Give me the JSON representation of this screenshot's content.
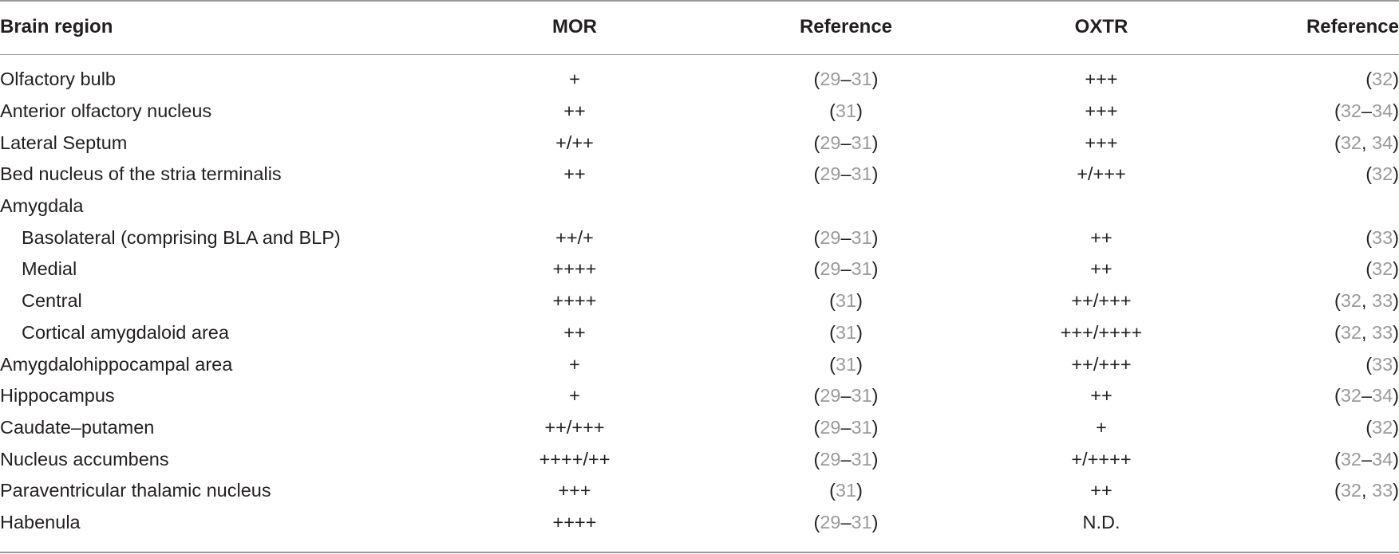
{
  "table": {
    "headers": [
      "Brain region",
      "MOR",
      "Reference",
      "OXTR",
      "Reference"
    ],
    "rows": [
      {
        "region": "Olfactory bulb",
        "indent": false,
        "mor": "+",
        "mor_ref": "(29–31)",
        "oxtr": "+++",
        "oxtr_ref": "(32)"
      },
      {
        "region": "Anterior olfactory nucleus",
        "indent": false,
        "mor": "++",
        "mor_ref": "(31)",
        "oxtr": "+++",
        "oxtr_ref": "(32–34)"
      },
      {
        "region": "Lateral Septum",
        "indent": false,
        "mor": "+/++",
        "mor_ref": "(29–31)",
        "oxtr": "+++",
        "oxtr_ref": "(32, 34)"
      },
      {
        "region": "Bed nucleus of the stria terminalis",
        "indent": false,
        "mor": "++",
        "mor_ref": "(29–31)",
        "oxtr": "+/+++",
        "oxtr_ref": "(32)"
      },
      {
        "region": "Amygdala",
        "indent": false,
        "mor": "",
        "mor_ref": "",
        "oxtr": "",
        "oxtr_ref": ""
      },
      {
        "region": "Basolateral (comprising BLA and BLP)",
        "indent": true,
        "mor": "++/+",
        "mor_ref": "(29–31)",
        "oxtr": "++",
        "oxtr_ref": "(33)"
      },
      {
        "region": "Medial",
        "indent": true,
        "mor": "++++",
        "mor_ref": "(29–31)",
        "oxtr": "++",
        "oxtr_ref": "(32)"
      },
      {
        "region": "Central",
        "indent": true,
        "mor": "++++",
        "mor_ref": "(31)",
        "oxtr": "++/+++",
        "oxtr_ref": "(32, 33)"
      },
      {
        "region": "Cortical amygdaloid area",
        "indent": true,
        "mor": "++",
        "mor_ref": "(31)",
        "oxtr": "+++/++++",
        "oxtr_ref": "(32, 33)"
      },
      {
        "region": "Amygdalohippocampal area",
        "indent": false,
        "mor": "+",
        "mor_ref": "(31)",
        "oxtr": "++/+++",
        "oxtr_ref": "(33)"
      },
      {
        "region": "Hippocampus",
        "indent": false,
        "mor": "+",
        "mor_ref": "(29–31)",
        "oxtr": "++",
        "oxtr_ref": "(32–34)"
      },
      {
        "region": "Caudate–putamen",
        "indent": false,
        "mor": "++/+++",
        "mor_ref": "(29–31)",
        "oxtr": "+",
        "oxtr_ref": "(32)"
      },
      {
        "region": "Nucleus accumbens",
        "indent": false,
        "mor": "++++/++",
        "mor_ref": "(29–31)",
        "oxtr": "+/++++",
        "oxtr_ref": "(32–34)"
      },
      {
        "region": "Paraventricular thalamic nucleus",
        "indent": false,
        "mor": "+++",
        "mor_ref": "(31)",
        "oxtr": "++",
        "oxtr_ref": "(32, 33)"
      },
      {
        "region": "Habenula",
        "indent": false,
        "mor": "++++",
        "mor_ref": "(29–31)",
        "oxtr": "N.D.",
        "oxtr_ref": ""
      }
    ]
  },
  "colors": {
    "text": "#231f20",
    "reference_number": "#9a9a9a",
    "rule": "#9a9a9a"
  }
}
